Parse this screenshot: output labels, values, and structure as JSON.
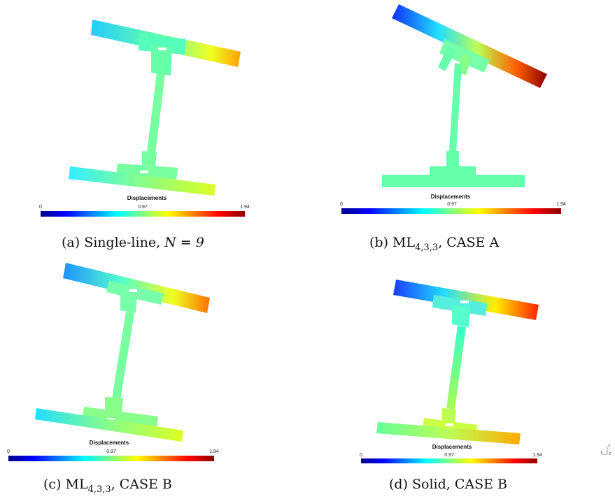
{
  "colormap": [
    "#00008b",
    "#0000ff",
    "#0080ff",
    "#00ffff",
    "#80ff80",
    "#ffff00",
    "#ff8000",
    "#ff0000",
    "#8b0000"
  ],
  "colorbar": {
    "title": "Displacements",
    "min": "0",
    "mid": "0.97",
    "max": "1.94"
  },
  "panels": [
    {
      "caption_pre": "(a) Single-line, ",
      "caption_math": "N = 9",
      "caption_post": ""
    },
    {
      "caption_pre": "(b) ML",
      "caption_sub": "4,3,3",
      "caption_post": ", CASE A"
    },
    {
      "caption_pre": "(c) ML",
      "caption_sub": "4,3,3",
      "caption_post": ", CASE B"
    },
    {
      "caption_pre": "(d) Solid, CASE B",
      "caption_post": ""
    }
  ],
  "axis_triad": {
    "x": "X",
    "y": "Y",
    "z": "Z"
  }
}
